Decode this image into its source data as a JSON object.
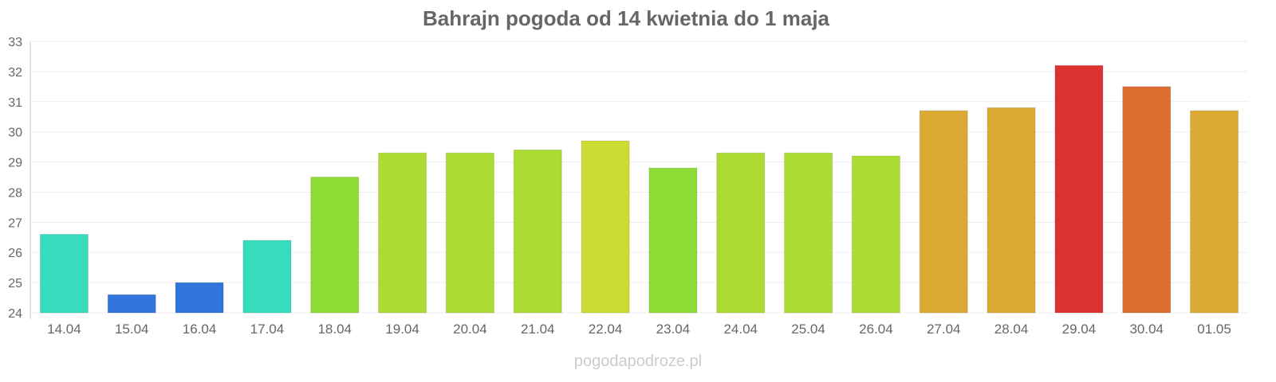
{
  "chart_data": {
    "type": "bar",
    "title": "Bahrajn pogoda od 14 kwietnia do 1 maja",
    "xlabel": "",
    "ylabel": "",
    "ylim": [
      24,
      33
    ],
    "yticks": [
      "24",
      "25",
      "26",
      "27",
      "28",
      "29",
      "30",
      "31",
      "32",
      "33"
    ],
    "grid": true,
    "categories": [
      "14.04",
      "15.04",
      "16.04",
      "17.04",
      "18.04",
      "19.04",
      "20.04",
      "21.04",
      "22.04",
      "23.04",
      "24.04",
      "25.04",
      "26.04",
      "27.04",
      "28.04",
      "29.04",
      "30.04",
      "01.05"
    ],
    "values": [
      26.6,
      24.6,
      25.0,
      26.4,
      28.5,
      29.3,
      29.3,
      29.4,
      29.7,
      28.8,
      29.3,
      29.3,
      29.2,
      30.7,
      30.8,
      32.2,
      31.5,
      30.7
    ],
    "colors": [
      "#36dcbc",
      "#3276dc",
      "#3276dc",
      "#36dcbc",
      "#8ddc36",
      "#acdc32",
      "#acdc32",
      "#acdc32",
      "#cddc32",
      "#8ddc36",
      "#acdc32",
      "#acdc32",
      "#acdc32",
      "#dcaa32",
      "#dcaa32",
      "#dc3232",
      "#dc6e32",
      "#dcaa32"
    ]
  },
  "credit": "pogodapodroze.pl"
}
